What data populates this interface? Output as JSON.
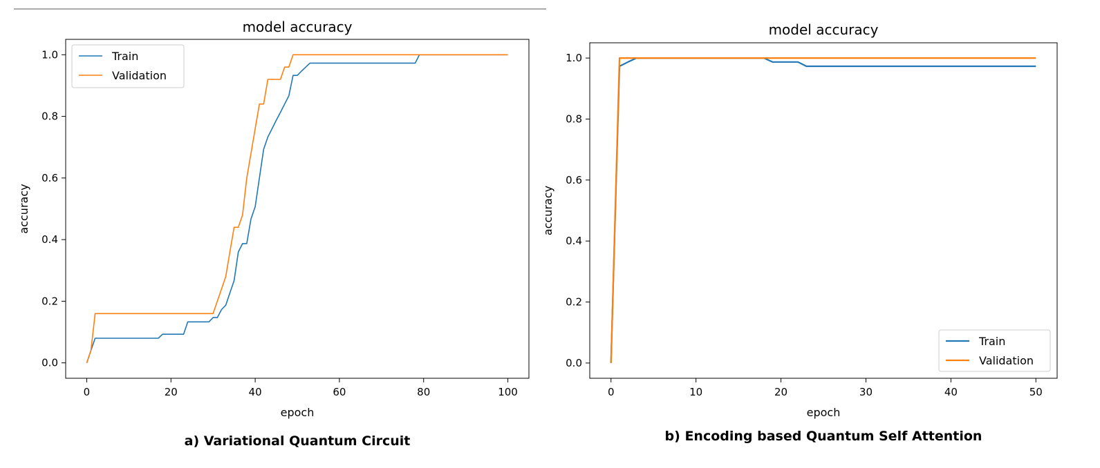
{
  "chart_data": [
    {
      "type": "line",
      "title": "model accuracy",
      "xlabel": "epoch",
      "ylabel": "accuracy",
      "caption": "a) Variational Quantum Circuit",
      "xlim": [
        -5,
        105
      ],
      "ylim": [
        -0.05,
        1.05
      ],
      "xticks": [
        0,
        20,
        40,
        60,
        80,
        100
      ],
      "yticks": [
        0.0,
        0.2,
        0.4,
        0.6,
        0.8,
        1.0
      ],
      "tick_labels_x": [
        "0",
        "20",
        "40",
        "60",
        "80",
        "100"
      ],
      "tick_labels_y": [
        "0.0",
        "0.2",
        "0.4",
        "0.6",
        "0.8",
        "1.0"
      ],
      "legend_position": "top-left",
      "series": [
        {
          "name": "Train",
          "color": "#1f77b4",
          "x": [
            0,
            1,
            2,
            3,
            17,
            18,
            23,
            24,
            29,
            30,
            31,
            32,
            33,
            34,
            35,
            36,
            37,
            38,
            39,
            40,
            41,
            42,
            43,
            44,
            45,
            46,
            47,
            48,
            49,
            50,
            51,
            52,
            53,
            54,
            78,
            79,
            100
          ],
          "y": [
            0.0,
            0.04,
            0.08,
            0.08,
            0.08,
            0.093,
            0.093,
            0.133,
            0.133,
            0.147,
            0.147,
            0.173,
            0.187,
            0.227,
            0.267,
            0.36,
            0.387,
            0.387,
            0.467,
            0.507,
            0.6,
            0.693,
            0.733,
            0.76,
            0.787,
            0.813,
            0.84,
            0.867,
            0.933,
            0.933,
            0.947,
            0.96,
            0.973,
            0.973,
            0.973,
            1.0,
            1.0
          ]
        },
        {
          "name": "Validation",
          "color": "#ff7f0e",
          "x": [
            0,
            1,
            2,
            30,
            31,
            32,
            33,
            34,
            35,
            36,
            37,
            38,
            39,
            40,
            41,
            42,
            43,
            44,
            45,
            46,
            47,
            48,
            49,
            100
          ],
          "y": [
            0.0,
            0.04,
            0.16,
            0.16,
            0.2,
            0.24,
            0.28,
            0.36,
            0.44,
            0.44,
            0.48,
            0.6,
            0.68,
            0.76,
            0.84,
            0.84,
            0.92,
            0.92,
            0.92,
            0.92,
            0.96,
            0.96,
            1.0,
            1.0
          ]
        }
      ]
    },
    {
      "type": "line",
      "title": "model accuracy",
      "xlabel": "epoch",
      "ylabel": "accuracy",
      "caption": "b) Encoding based Quantum Self Attention",
      "xlim": [
        -2.5,
        52.5
      ],
      "ylim": [
        -0.05,
        1.05
      ],
      "xticks": [
        0,
        10,
        20,
        30,
        40,
        50
      ],
      "yticks": [
        0.0,
        0.2,
        0.4,
        0.6,
        0.8,
        1.0
      ],
      "tick_labels_x": [
        "0",
        "10",
        "20",
        "30",
        "40",
        "50"
      ],
      "tick_labels_y": [
        "0.0",
        "0.2",
        "0.4",
        "0.6",
        "0.8",
        "1.0"
      ],
      "legend_position": "bottom-right",
      "series": [
        {
          "name": "Train",
          "color": "#1f77b4",
          "x": [
            0,
            1,
            2,
            3,
            18,
            19,
            22,
            23,
            50
          ],
          "y": [
            0.0,
            0.973,
            0.987,
            1.0,
            1.0,
            0.987,
            0.987,
            0.973,
            0.973
          ]
        },
        {
          "name": "Validation",
          "color": "#ff7f0e",
          "x": [
            0,
            1,
            50
          ],
          "y": [
            0.0,
            1.0,
            1.0
          ]
        }
      ]
    }
  ]
}
